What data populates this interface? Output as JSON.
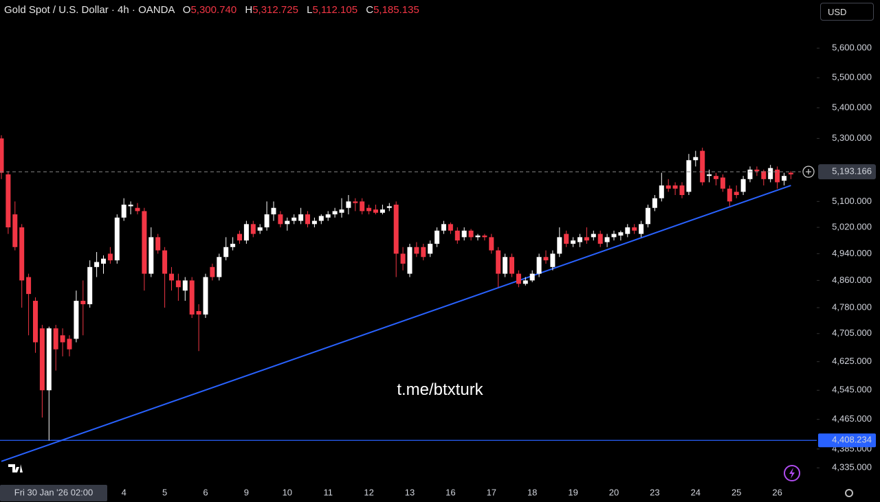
{
  "header": {
    "symbol": "Gold Spot / U.S. Dollar · 4h · OANDA",
    "ohlc": [
      {
        "key": "O",
        "value": "5,300.740"
      },
      {
        "key": "H",
        "value": "5,312.725"
      },
      {
        "key": "L",
        "value": "5,112.105"
      },
      {
        "key": "C",
        "value": "5,185.135"
      }
    ]
  },
  "currency": "USD",
  "watermark": "t.me/btxturk",
  "chart_data": {
    "type": "candlestick",
    "log_scale": true,
    "grid": false,
    "up_color": "#ffffff",
    "down_color": "#f23645",
    "ylim": [
      4292,
      5767
    ],
    "yticks": [
      {
        "value": 5600,
        "label": "5,600.000"
      },
      {
        "value": 5500,
        "label": "5,500.000"
      },
      {
        "value": 5400,
        "label": "5,400.000"
      },
      {
        "value": 5300,
        "label": "5,300.000"
      },
      {
        "value": 5100,
        "label": "5,100.000"
      },
      {
        "value": 5020,
        "label": "5,020.000"
      },
      {
        "value": 4940,
        "label": "4,940.000"
      },
      {
        "value": 4860,
        "label": "4,860.000"
      },
      {
        "value": 4780,
        "label": "4,780.000"
      },
      {
        "value": 4705,
        "label": "4,705.000"
      },
      {
        "value": 4625,
        "label": "4,625.000"
      },
      {
        "value": 4545,
        "label": "4,545.000"
      },
      {
        "value": 4465,
        "label": "4,465.000"
      },
      {
        "value": 4385,
        "label": "4,385.000"
      },
      {
        "value": 4335,
        "label": "4,335.000"
      }
    ],
    "categories": [
      null,
      null,
      null,
      null,
      null,
      null,
      null,
      null,
      null,
      null,
      null,
      null,
      null,
      null,
      null,
      null,
      null,
      null,
      "4",
      null,
      null,
      null,
      null,
      null,
      "5",
      null,
      null,
      null,
      null,
      null,
      "6",
      null,
      null,
      null,
      null,
      null,
      "9",
      null,
      null,
      null,
      null,
      null,
      "10",
      null,
      null,
      null,
      null,
      null,
      "11",
      null,
      null,
      null,
      null,
      null,
      "12",
      null,
      null,
      null,
      null,
      null,
      "13",
      null,
      null,
      null,
      null,
      null,
      "16",
      null,
      null,
      null,
      null,
      null,
      "17",
      null,
      null,
      null,
      null,
      null,
      "18",
      null,
      null,
      null,
      null,
      null,
      "19",
      null,
      null,
      null,
      null,
      null,
      "20",
      null,
      null,
      null,
      null,
      null,
      "23",
      null,
      null,
      null,
      null,
      null,
      "24",
      null,
      null,
      null,
      null,
      null,
      "25",
      null,
      null,
      null,
      null,
      null,
      "26",
      null,
      null
    ],
    "values": [
      [
        5300,
        5310,
        5170,
        5190
      ],
      [
        5185,
        5195,
        5000,
        5020
      ],
      [
        5060,
        5100,
        4950,
        4960
      ],
      [
        5020,
        5030,
        4780,
        4860
      ],
      [
        4870,
        4880,
        4700,
        4820
      ],
      [
        4800,
        4810,
        4650,
        4680
      ],
      [
        4720,
        4730,
        4470,
        4545
      ],
      [
        4545,
        4725,
        4408,
        4720
      ],
      [
        4720,
        4730,
        4600,
        4660
      ],
      [
        4700,
        4720,
        4640,
        4680
      ],
      [
        4690,
        4700,
        4640,
        4660
      ],
      [
        4690,
        4830,
        4680,
        4800
      ],
      [
        4800,
        4860,
        4700,
        4790
      ],
      [
        4790,
        4920,
        4780,
        4900
      ],
      [
        4900,
        4945,
        4870,
        4915
      ],
      [
        4910,
        4935,
        4880,
        4925
      ],
      [
        4940,
        4960,
        4910,
        4920
      ],
      [
        4920,
        5060,
        4910,
        5050
      ],
      [
        5050,
        5110,
        5040,
        5090
      ],
      [
        5085,
        5100,
        5060,
        5090
      ],
      [
        5080,
        5095,
        5060,
        5070
      ],
      [
        5070,
        5080,
        4830,
        4880
      ],
      [
        4880,
        5020,
        4870,
        4990
      ],
      [
        4990,
        5000,
        4940,
        4950
      ],
      [
        4950,
        4960,
        4780,
        4880
      ],
      [
        4880,
        4900,
        4830,
        4860
      ],
      [
        4860,
        4880,
        4800,
        4840
      ],
      [
        4830,
        4870,
        4800,
        4860
      ],
      [
        4860,
        4870,
        4750,
        4760
      ],
      [
        4770,
        4790,
        4655,
        4760
      ],
      [
        4760,
        4880,
        4750,
        4870
      ],
      [
        4900,
        4910,
        4860,
        4870
      ],
      [
        4870,
        4940,
        4860,
        4930
      ],
      [
        4930,
        4990,
        4920,
        4960
      ],
      [
        4960,
        4990,
        4950,
        4970
      ],
      [
        5000,
        5010,
        4970,
        4980
      ],
      [
        4980,
        5040,
        4970,
        5030
      ],
      [
        5030,
        5040,
        4990,
        5000
      ],
      [
        5010,
        5030,
        5000,
        5020
      ],
      [
        5020,
        5100,
        5010,
        5060
      ],
      [
        5060,
        5100,
        5040,
        5080
      ],
      [
        5060,
        5070,
        5020,
        5030
      ],
      [
        5030,
        5050,
        5010,
        5040
      ],
      [
        5040,
        5060,
        5030,
        5050
      ],
      [
        5040,
        5080,
        5030,
        5060
      ],
      [
        5060,
        5070,
        5020,
        5030
      ],
      [
        5030,
        5050,
        5020,
        5040
      ],
      [
        5040,
        5060,
        5030,
        5055
      ],
      [
        5050,
        5070,
        5040,
        5060
      ],
      [
        5060,
        5080,
        5050,
        5070
      ],
      [
        5065,
        5110,
        5050,
        5075
      ],
      [
        5080,
        5120,
        5060,
        5100
      ],
      [
        5100,
        5110,
        5070,
        5095
      ],
      [
        5100,
        5110,
        5060,
        5070
      ],
      [
        5080,
        5090,
        5060,
        5070
      ],
      [
        5075,
        5090,
        5060,
        5065
      ],
      [
        5065,
        5090,
        5060,
        5075
      ],
      [
        5080,
        5095,
        5070,
        5085
      ],
      [
        5090,
        5100,
        4870,
        4940
      ],
      [
        4940,
        4960,
        4890,
        4910
      ],
      [
        4880,
        4970,
        4870,
        4960
      ],
      [
        4960,
        4975,
        4930,
        4940
      ],
      [
        4960,
        4970,
        4920,
        4930
      ],
      [
        4940,
        4980,
        4930,
        4970
      ],
      [
        4970,
        5020,
        4960,
        5010
      ],
      [
        5010,
        5040,
        5000,
        5030
      ],
      [
        5030,
        5035,
        5000,
        5010
      ],
      [
        5010,
        5020,
        4970,
        4980
      ],
      [
        4990,
        5020,
        4980,
        5010
      ],
      [
        5010,
        5015,
        4980,
        4990
      ],
      [
        4990,
        5000,
        4980,
        4995
      ],
      [
        4995,
        5000,
        4980,
        4990
      ],
      [
        4990,
        5000,
        4940,
        4950
      ],
      [
        4950,
        4960,
        4840,
        4880
      ],
      [
        4880,
        4940,
        4870,
        4930
      ],
      [
        4930,
        4940,
        4870,
        4880
      ],
      [
        4880,
        4890,
        4840,
        4850
      ],
      [
        4850,
        4870,
        4845,
        4860
      ],
      [
        4860,
        4890,
        4855,
        4880
      ],
      [
        4880,
        4940,
        4870,
        4930
      ],
      [
        4930,
        4950,
        4910,
        4920
      ],
      [
        4900,
        4950,
        4890,
        4940
      ],
      [
        4940,
        5020,
        4930,
        4990
      ],
      [
        5000,
        5010,
        4960,
        4970
      ],
      [
        4970,
        4990,
        4960,
        4980
      ],
      [
        4975,
        5000,
        4960,
        4990
      ],
      [
        4990,
        5020,
        4970,
        4980
      ],
      [
        4990,
        5010,
        4980,
        5000
      ],
      [
        5000,
        5010,
        4960,
        4970
      ],
      [
        4975,
        5000,
        4960,
        4990
      ],
      [
        4990,
        5010,
        4980,
        5000
      ],
      [
        4995,
        5010,
        4980,
        5005
      ],
      [
        5000,
        5030,
        4990,
        5020
      ],
      [
        5020,
        5030,
        5000,
        5010
      ],
      [
        5000,
        5040,
        4990,
        5030
      ],
      [
        5030,
        5090,
        5020,
        5080
      ],
      [
        5080,
        5120,
        5070,
        5110
      ],
      [
        5110,
        5190,
        5100,
        5150
      ],
      [
        5150,
        5170,
        5130,
        5140
      ],
      [
        5150,
        5160,
        5120,
        5140
      ],
      [
        5150,
        5160,
        5110,
        5120
      ],
      [
        5130,
        5250,
        5120,
        5230
      ],
      [
        5230,
        5260,
        5210,
        5240
      ],
      [
        5260,
        5270,
        5150,
        5160
      ],
      [
        5180,
        5200,
        5160,
        5185
      ],
      [
        5180,
        5190,
        5150,
        5170
      ],
      [
        5175,
        5185,
        5130,
        5140
      ],
      [
        5140,
        5150,
        5085,
        5100
      ],
      [
        5130,
        5150,
        5110,
        5120
      ],
      [
        5130,
        5180,
        5120,
        5170
      ],
      [
        5170,
        5210,
        5160,
        5200
      ],
      [
        5200,
        5210,
        5180,
        5195
      ],
      [
        5195,
        5200,
        5150,
        5170
      ],
      [
        5170,
        5215,
        5160,
        5205
      ],
      [
        5200,
        5210,
        5140,
        5160
      ],
      [
        5165,
        5190,
        5150,
        5180
      ],
      [
        5190,
        5195,
        5170,
        5185
      ]
    ],
    "crosshair": {
      "price": {
        "value": 5193.166,
        "label": "5,193.166"
      },
      "time": "Fri 30 Jan '26  02:00"
    },
    "hline": {
      "value": 4408.234,
      "label": "4,408.234",
      "color": "#2962ff"
    },
    "trendline": {
      "color": "#2962ff",
      "x": [
        0,
        116
      ],
      "y": [
        4352,
        5150
      ]
    }
  }
}
